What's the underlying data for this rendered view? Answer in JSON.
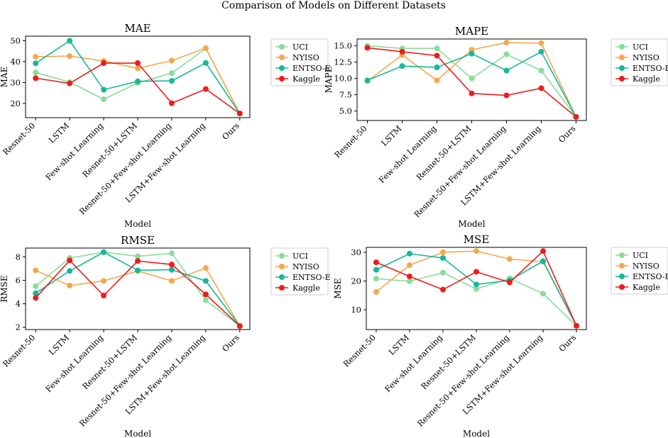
{
  "suptitle": "Comparison of Models on Different Datasets",
  "colors": {
    "UCI": "#88dd99",
    "NYISO": "#f6a74d",
    "ENTSO-E": "#15b89a",
    "Kaggle": "#ee1c1c"
  },
  "chart_data": [
    {
      "type": "line",
      "title": "MAE",
      "xlabel": "Model",
      "ylabel": "MAE",
      "categories": [
        "Resnet-50",
        "LSTM",
        "Few-shot Learning",
        "Resnet-50+LSTM",
        "Resnet-50+Few-shot Learning",
        "LSTM+Few-shot Learning",
        "Ours"
      ],
      "ylim": [
        13.2,
        52.2
      ],
      "yticks": [
        20,
        30,
        40,
        50
      ],
      "ytick_labels": [
        "20",
        "30",
        "40",
        "50"
      ],
      "legend_position": "outside-right",
      "series": [
        {
          "name": "UCI",
          "values": [
            34.8,
            30.2,
            22.0,
            29.8,
            34.5,
            46.3,
            15.2
          ]
        },
        {
          "name": "NYISO",
          "values": [
            42.3,
            42.7,
            40.3,
            36.8,
            40.5,
            46.5,
            15.2
          ]
        },
        {
          "name": "ENTSO-E",
          "values": [
            39.2,
            50.0,
            26.6,
            30.6,
            30.8,
            39.4,
            15.2
          ]
        },
        {
          "name": "Kaggle",
          "values": [
            32.1,
            29.6,
            39.3,
            39.3,
            20.1,
            26.9,
            15.2
          ]
        }
      ]
    },
    {
      "type": "line",
      "title": "MAPE",
      "xlabel": "Model",
      "ylabel": "MAPE",
      "categories": [
        "Resnet-50",
        "LSTM",
        "Few-shot Learning",
        "Resnet-50+LSTM",
        "Resnet-50+Few-shot Learning",
        "LSTM+Few-shot Learning",
        "Ours"
      ],
      "ylim": [
        3.55,
        16.05
      ],
      "yticks": [
        5.0,
        7.5,
        10.0,
        12.5,
        15.0
      ],
      "ytick_labels": [
        "5.0",
        "7.5",
        "10.0",
        "12.5",
        "15.0"
      ],
      "legend_position": "outside-right",
      "series": [
        {
          "name": "UCI",
          "values": [
            15.0,
            14.6,
            14.6,
            10.0,
            13.7,
            11.2,
            4.1
          ]
        },
        {
          "name": "NYISO",
          "values": [
            9.6,
            13.6,
            9.7,
            14.4,
            15.5,
            15.4,
            4.1
          ]
        },
        {
          "name": "ENTSO-E",
          "values": [
            9.7,
            11.9,
            11.7,
            13.8,
            11.2,
            14.1,
            4.1
          ]
        },
        {
          "name": "Kaggle",
          "values": [
            14.7,
            14.1,
            13.5,
            7.7,
            7.4,
            8.5,
            4.1
          ]
        }
      ]
    },
    {
      "type": "line",
      "title": "RMSE",
      "xlabel": "Model",
      "ylabel": "RMSE",
      "categories": [
        "Resnet-50",
        "LSTM",
        "Few-shot Learning",
        "Resnet-50+LSTM",
        "Resnet-50+Few-shot Learning",
        "LSTM+Few-shot Learning",
        "Ours"
      ],
      "ylim": [
        1.8,
        8.75
      ],
      "yticks": [
        2,
        4,
        6,
        8
      ],
      "ytick_labels": [
        "2",
        "4",
        "6",
        "8"
      ],
      "legend_position": "outside-right",
      "series": [
        {
          "name": "UCI",
          "values": [
            5.5,
            7.9,
            8.4,
            8.05,
            8.3,
            4.3,
            2.1
          ]
        },
        {
          "name": "NYISO",
          "values": [
            6.85,
            5.55,
            5.95,
            6.8,
            5.95,
            7.05,
            2.1
          ]
        },
        {
          "name": "ENTSO-E",
          "values": [
            4.9,
            6.8,
            8.4,
            6.85,
            6.9,
            5.95,
            2.1
          ]
        },
        {
          "name": "Kaggle",
          "values": [
            4.5,
            7.7,
            4.7,
            7.65,
            7.35,
            4.8,
            2.1
          ]
        }
      ]
    },
    {
      "type": "line",
      "title": "MSE",
      "xlabel": "Model",
      "ylabel": "MSE",
      "categories": [
        "Resnet-50",
        "LSTM",
        "Few-shot Learning",
        "Resnet-50+LSTM",
        "Resnet-50+Few-shot Learning",
        "LSTM+Few-shot Learning",
        "Ours"
      ],
      "ylim": [
        3.1,
        31.7
      ],
      "yticks": [
        10,
        20,
        30
      ],
      "ytick_labels": [
        "10",
        "20",
        "30"
      ],
      "legend_position": "outside-right",
      "series": [
        {
          "name": "UCI",
          "values": [
            20.8,
            19.9,
            22.9,
            17.2,
            20.9,
            15.6,
            4.4
          ]
        },
        {
          "name": "NYISO",
          "values": [
            16.2,
            25.5,
            30.0,
            30.4,
            27.6,
            26.7,
            4.4
          ]
        },
        {
          "name": "ENTSO-E",
          "values": [
            23.9,
            29.5,
            28.0,
            18.8,
            20.2,
            26.9,
            4.4
          ]
        },
        {
          "name": "Kaggle",
          "values": [
            26.5,
            21.6,
            17.0,
            23.2,
            19.5,
            30.4,
            4.4
          ]
        }
      ]
    }
  ]
}
